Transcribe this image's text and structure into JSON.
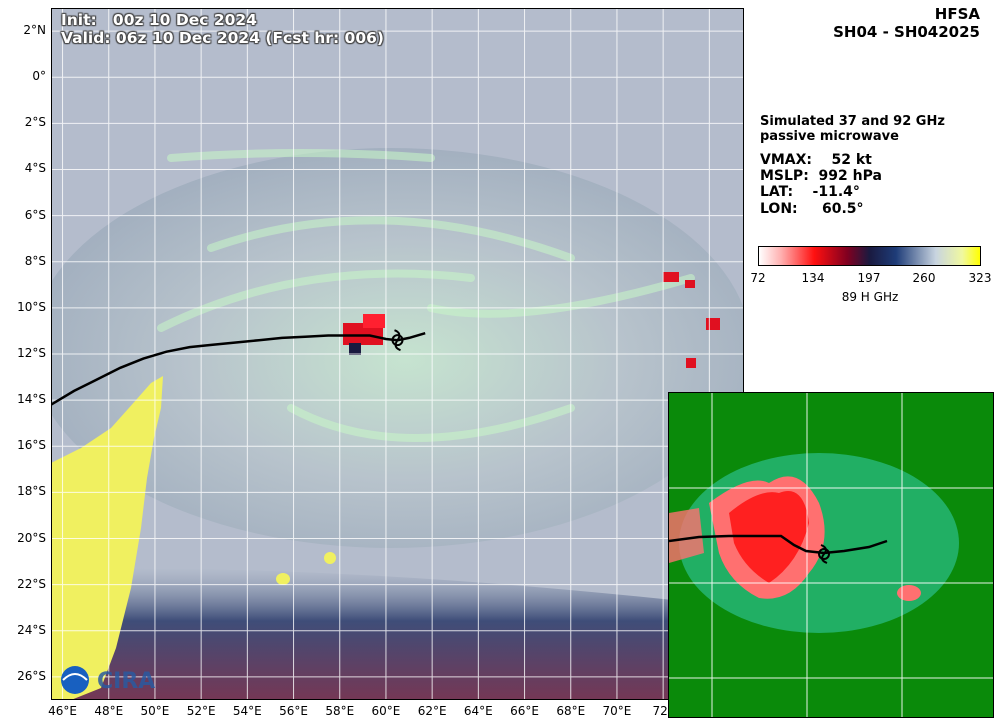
{
  "header": {
    "model": "HFSA",
    "storm_id": "SH04 - SH042025"
  },
  "timestamps": {
    "init": "Init:   00z 10 Dec 2024",
    "valid": "Valid: 06z 10 Dec 2024 (Fcst hr: 006)"
  },
  "info": {
    "product_line1": "Simulated 37 and 92 GHz",
    "product_line2": "passive microwave",
    "vmax": "VMAX:    52 kt",
    "mslp": "MSLP:  992 hPa",
    "lat": "LAT:    -11.4°",
    "lon": "LON:     60.5°"
  },
  "colorbar": {
    "ticks": [
      "72",
      "134",
      "197",
      "260",
      "323"
    ],
    "label": "89 H GHz",
    "colors": [
      "#ffffff",
      "#ff0000",
      "#1a1a40",
      "#1e3c78",
      "#c8d4e0",
      "#ffff00"
    ]
  },
  "axes": {
    "lat_labels": [
      "2°N",
      "0°",
      "2°S",
      "4°S",
      "6°S",
      "8°S",
      "10°S",
      "12°S",
      "14°S",
      "16°S",
      "18°S",
      "20°S",
      "22°S",
      "24°S",
      "26°S"
    ],
    "lon_labels": [
      "46°E",
      "48°E",
      "50°E",
      "52°E",
      "54°E",
      "56°E",
      "58°E",
      "60°E",
      "62°E",
      "64°E",
      "66°E",
      "68°E",
      "70°E",
      "72°"
    ]
  },
  "storm": {
    "lat": -11.4,
    "lon": 60.5,
    "track_lonlat": [
      [
        45.5,
        -14.2
      ],
      [
        46.5,
        -13.6
      ],
      [
        47.5,
        -13.1
      ],
      [
        48.5,
        -12.6
      ],
      [
        49.5,
        -12.2
      ],
      [
        50.5,
        -11.9
      ],
      [
        51.5,
        -11.7
      ],
      [
        52.5,
        -11.6
      ],
      [
        53.5,
        -11.5
      ],
      [
        54.5,
        -11.4
      ],
      [
        55.5,
        -11.3
      ],
      [
        56.5,
        -11.25
      ],
      [
        57.5,
        -11.2
      ],
      [
        58.5,
        -11.2
      ],
      [
        59.3,
        -11.2
      ],
      [
        60.0,
        -11.35
      ],
      [
        60.5,
        -11.4
      ],
      [
        61.0,
        -11.3
      ],
      [
        61.7,
        -11.1
      ]
    ]
  },
  "colors": {
    "land": "#f0f060",
    "ocean_cloud": "#b4bccc",
    "moist": "#c8f0c8",
    "deep_convection": "#e01020",
    "inset_background": "#0a8a0a"
  },
  "logo": {
    "text": "CIRA"
  }
}
